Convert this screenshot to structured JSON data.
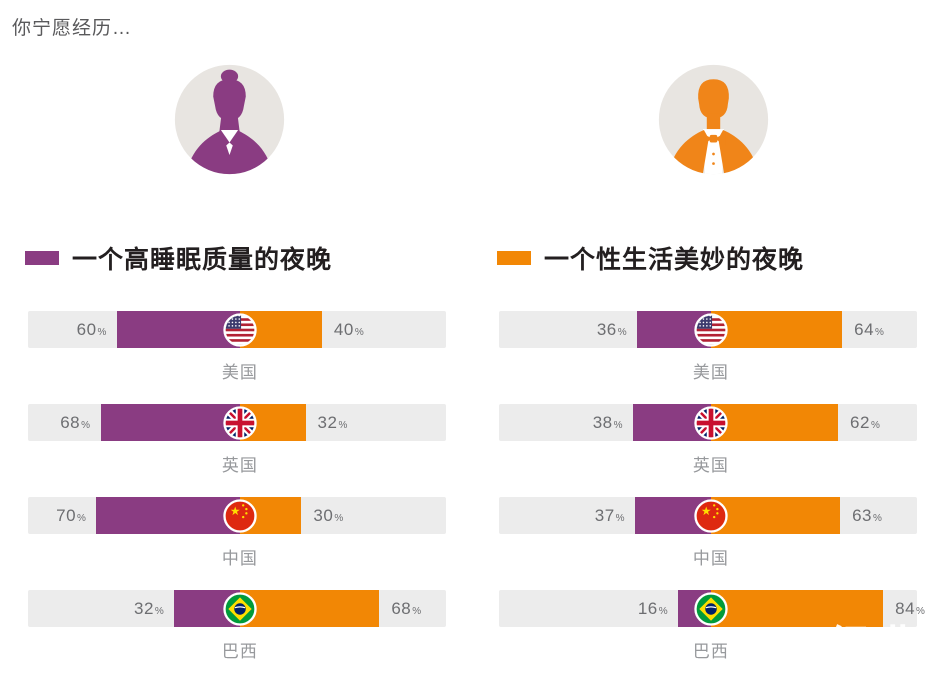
{
  "page": {
    "title": "你宁愿经历…",
    "watermark_text": "365经典",
    "watermark_badge": "网"
  },
  "colors": {
    "purple": "#8A3C82",
    "orange": "#F28705",
    "track_gray": "#ECECEC",
    "avatar_bg": "#E8E5E1",
    "percent_text": "#6D6E71",
    "country_text": "#97999C"
  },
  "legend": {
    "sleep": "一个高睡眠质量的夜晚",
    "sex": "一个性生活美妙的夜晚"
  },
  "chart_data": {
    "type": "bar",
    "subtype": "paired-diverging-horizontal",
    "title": "你宁愿经历…",
    "unit": "%",
    "legend": [
      "一个高睡眠质量的夜晚",
      "一个性生活美妙的夜晚"
    ],
    "legend_colors": [
      "#8A3C82",
      "#F28705"
    ],
    "groups": [
      {
        "name": "women",
        "icon": "female-avatar",
        "rows": [
          {
            "country": "美国",
            "flag": "us",
            "sleep_pct": 60,
            "sex_pct": 40
          },
          {
            "country": "英国",
            "flag": "uk",
            "sleep_pct": 68,
            "sex_pct": 32
          },
          {
            "country": "中国",
            "flag": "cn",
            "sleep_pct": 70,
            "sex_pct": 30
          },
          {
            "country": "巴西",
            "flag": "br",
            "sleep_pct": 32,
            "sex_pct": 68
          }
        ]
      },
      {
        "name": "men",
        "icon": "male-avatar",
        "rows": [
          {
            "country": "美国",
            "flag": "us",
            "sleep_pct": 36,
            "sex_pct": 64
          },
          {
            "country": "英国",
            "flag": "uk",
            "sleep_pct": 38,
            "sex_pct": 62
          },
          {
            "country": "中国",
            "flag": "cn",
            "sleep_pct": 37,
            "sex_pct": 63
          },
          {
            "country": "巴西",
            "flag": "br",
            "sleep_pct": 16,
            "sex_pct": 84
          }
        ]
      }
    ]
  }
}
